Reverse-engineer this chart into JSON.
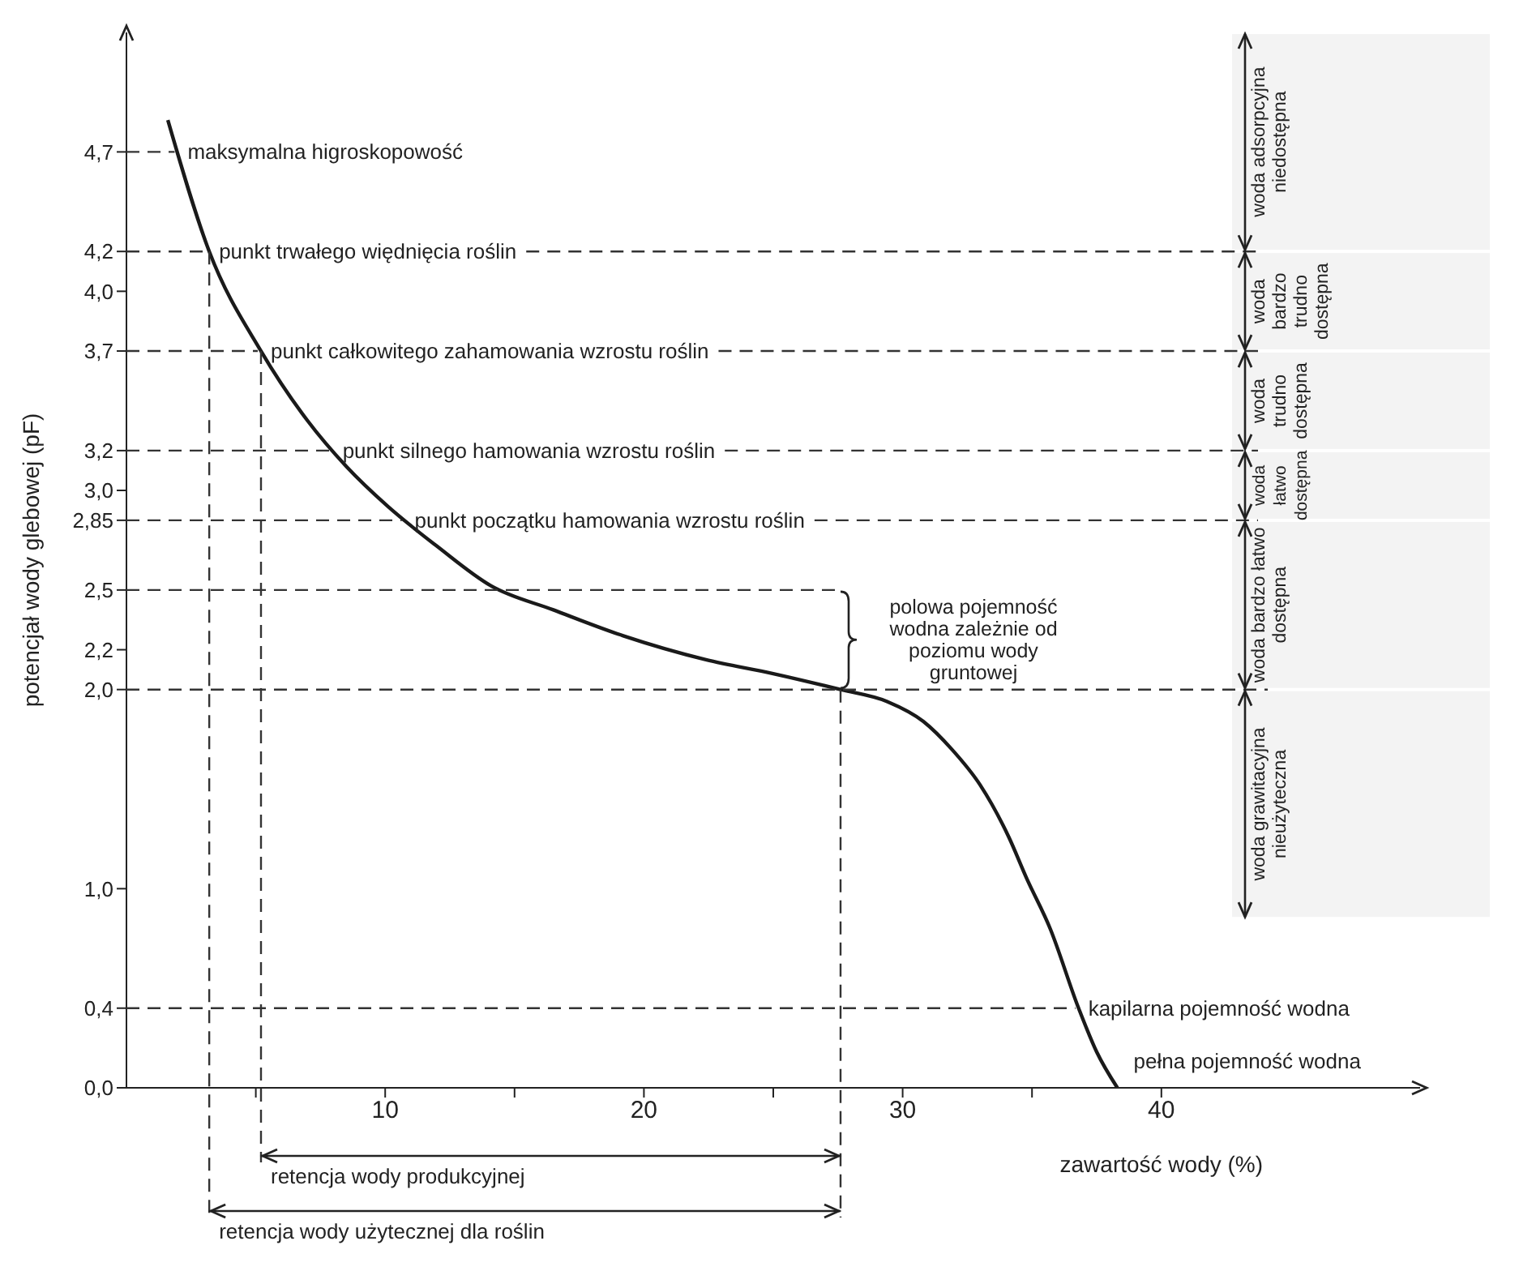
{
  "chart_data": {
    "type": "line",
    "xlabel": "zawartość wody (%)",
    "ylabel": "potencjał wody glebowej (pF)",
    "x": [
      1.6,
      3.2,
      5.2,
      7,
      8.5,
      10.1,
      12,
      14.1,
      16.5,
      19.2,
      22.4,
      25,
      27.6,
      29.4,
      30.8,
      31.9,
      33,
      34.1,
      34.8,
      35.7,
      36.8,
      37.5,
      38.3
    ],
    "series": [
      {
        "color": "#1a1a1a",
        "values": [
          4.86,
          4.2,
          3.7,
          3.35,
          3.12,
          2.92,
          2.72,
          2.52,
          2.4,
          2.27,
          2.15,
          2.08,
          2.0,
          1.94,
          1.84,
          1.7,
          1.52,
          1.26,
          1.05,
          0.8,
          0.4,
          0.18,
          0
        ]
      }
    ],
    "xlim": [
      0,
      50
    ],
    "ylim": [
      0,
      5.3
    ],
    "xticks": [
      {
        "value": 5,
        "label": null
      },
      10,
      {
        "value": 15,
        "label": null
      },
      20,
      {
        "value": 25,
        "label": null
      },
      30,
      {
        "value": 35,
        "label": null
      },
      40
    ],
    "yticks": [
      {
        "value": 0,
        "label": "0,0"
      },
      {
        "value": 0.4,
        "label": "0,4"
      },
      {
        "value": 1,
        "label": "1,0"
      },
      {
        "value": 2,
        "label": "2,0"
      },
      {
        "value": 2.2,
        "label": "2,2"
      },
      {
        "value": 2.5,
        "label": "2,5"
      },
      {
        "value": 2.85,
        "label": "2,85"
      },
      {
        "value": 3,
        "label": "3,0"
      },
      {
        "value": 3.2,
        "label": "3,2"
      },
      {
        "value": 3.7,
        "label": "3,7"
      },
      {
        "value": 4,
        "label": "4,0"
      },
      {
        "value": 4.2,
        "label": "4,2"
      },
      {
        "value": 4.7,
        "label": "4,7"
      }
    ],
    "marker": "none",
    "ref_lines": [
      {
        "axis": "y",
        "value": 4.7,
        "label": "maksymalna higroskopowość",
        "line_style": "dashed"
      },
      {
        "axis": "y",
        "value": 4.2,
        "label": "punkt trwałego więdnięcia roślin",
        "line_style": "dashed"
      },
      {
        "axis": "y",
        "value": 3.7,
        "label": "punkt całkowitego zahamowania wzrostu roślin",
        "line_style": "dashed"
      },
      {
        "axis": "y",
        "value": 3.2,
        "label": "punkt silnego hamowania wzrostu roślin",
        "line_style": "dashed"
      },
      {
        "axis": "y",
        "value": 2.85,
        "label": "punkt początku hamowania wzrostu roślin",
        "line_style": "dashed"
      },
      {
        "axis": "y",
        "value": 2.5,
        "line_style": "dashed"
      },
      {
        "axis": "y",
        "value": 2.0,
        "line_style": "dashed"
      },
      {
        "axis": "y",
        "value": 0.4,
        "label": "kapilarna pojemność wodna",
        "line_style": "dashed"
      },
      {
        "axis": "x",
        "value": 3.2,
        "label": "retencja wody użytecznej dla roślin",
        "line_style": "dashed"
      },
      {
        "axis": "x",
        "value": 5.2,
        "label": "retencja wody produkcyjnej",
        "line_style": "dashed"
      },
      {
        "axis": "x",
        "value": 27.6,
        "line_style": "dashed"
      }
    ],
    "bands": [
      {
        "axis": "y",
        "from": 4.2,
        "to": 5.3,
        "label": "woda adsorpcyjna niedostępna"
      },
      {
        "axis": "y",
        "from": 3.7,
        "to": 4.2,
        "label": "woda bardzo trudno dostępna"
      },
      {
        "axis": "y",
        "from": 3.2,
        "to": 3.7,
        "label": "woda trudno dostępna"
      },
      {
        "axis": "y",
        "from": 2.85,
        "to": 3.2,
        "label": "woda łatwo dostępna"
      },
      {
        "axis": "y",
        "from": 2.0,
        "to": 2.85,
        "label": "woda bardzo łatwo dostępna"
      },
      {
        "axis": "y",
        "from": 0.85,
        "to": 2.0,
        "label": "woda grawitacyjna nieużyteczna"
      }
    ],
    "annotations": [
      "polowa pojemność wodna zależnie od poziomu wody gruntowej",
      {
        "text": "pełna pojemność wodna",
        "x": 38.3,
        "y": 0
      }
    ]
  }
}
